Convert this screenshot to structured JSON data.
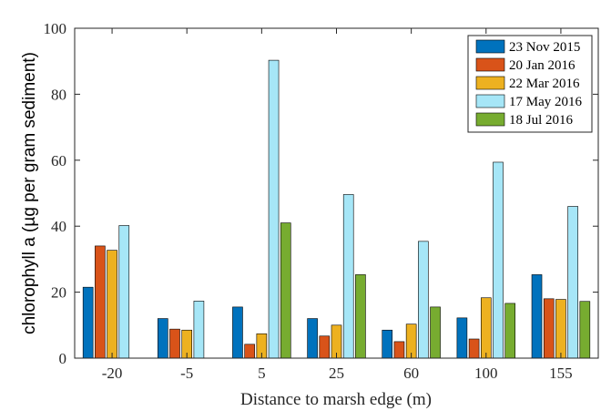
{
  "chart_data": {
    "type": "bar",
    "xlabel": "Distance to marsh edge (m)",
    "ylabel": "chlorophyll a (µg per gram sediment)",
    "categories": [
      "-20",
      "-5",
      "5",
      "25",
      "60",
      "100",
      "155"
    ],
    "ylim": [
      0,
      100
    ],
    "yticks": [
      0,
      20,
      40,
      60,
      80,
      100
    ],
    "legend_position": "top-right",
    "grid": false,
    "series": [
      {
        "name": "23 Nov 2015",
        "color": "#0072BD",
        "values": [
          21.5,
          12.0,
          15.5,
          12.0,
          8.5,
          12.2,
          25.3
        ]
      },
      {
        "name": "20 Jan 2016",
        "color": "#D95319",
        "values": [
          34.0,
          8.8,
          4.2,
          6.7,
          5.0,
          5.8,
          18.0
        ]
      },
      {
        "name": "22 Mar 2016",
        "color": "#EDB120",
        "values": [
          32.7,
          8.5,
          7.4,
          10.0,
          10.3,
          18.3,
          17.8
        ]
      },
      {
        "name": "17 May 2016",
        "color": "#A6E6F7",
        "values": [
          40.2,
          17.3,
          90.3,
          49.6,
          35.4,
          59.4,
          46.0
        ]
      },
      {
        "name": "18 Jul 2016",
        "color": "#77AC30",
        "values": [
          null,
          null,
          41.0,
          25.3,
          15.5,
          16.6,
          17.2
        ]
      }
    ]
  }
}
